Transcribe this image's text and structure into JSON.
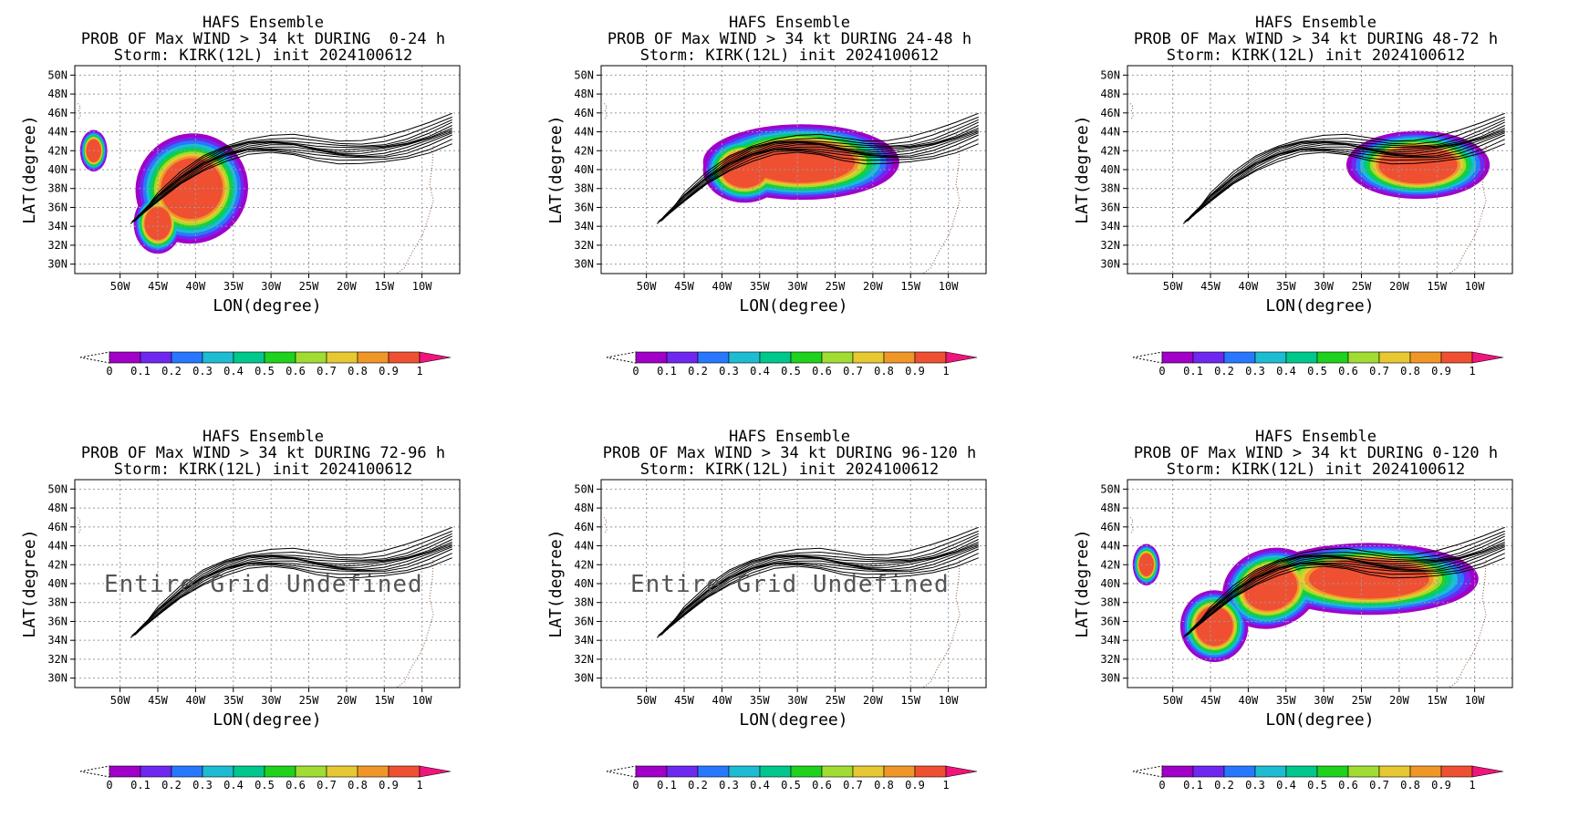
{
  "panels": [
    {
      "title": "HAFS Ensemble",
      "subtitle": "PROB OF Max WIND > 34 kt DURING  0-24 h",
      "storm": "Storm: KIRK(12L) init 2024100612",
      "undefined_text": ""
    },
    {
      "title": "HAFS Ensemble",
      "subtitle": "PROB OF Max WIND > 34 kt DURING 24-48 h",
      "storm": "Storm: KIRK(12L) init 2024100612",
      "undefined_text": ""
    },
    {
      "title": "HAFS Ensemble",
      "subtitle": "PROB OF Max WIND > 34 kt DURING 48-72 h",
      "storm": "Storm: KIRK(12L) init 2024100612",
      "undefined_text": ""
    },
    {
      "title": "HAFS Ensemble",
      "subtitle": "PROB OF Max WIND > 34 kt DURING 72-96 h",
      "storm": "Storm: KIRK(12L) init 2024100612",
      "undefined_text": "Entire Grid Undefined"
    },
    {
      "title": "HAFS Ensemble",
      "subtitle": "PROB OF Max WIND > 34 kt DURING 96-120 h",
      "storm": "Storm: KIRK(12L) init 2024100612",
      "undefined_text": "Entire Grid Undefined"
    },
    {
      "title": "HAFS Ensemble",
      "subtitle": "PROB OF Max WIND > 34 kt DURING 0-120 h",
      "storm": "Storm: KIRK(12L) init 2024100612",
      "undefined_text": ""
    }
  ],
  "chart_data": {
    "type": "heatmap",
    "variable": "PROB OF Max WIND > 34 kt",
    "xlabel": "LON(degree)",
    "ylabel": "LAT(degree)",
    "xlim": [
      -56,
      -5
    ],
    "ylim": [
      29,
      51
    ],
    "x_ticks": [
      -50,
      -45,
      -40,
      -35,
      -30,
      -25,
      -20,
      -15,
      -10
    ],
    "x_tick_labels": [
      "50W",
      "45W",
      "40W",
      "35W",
      "30W",
      "25W",
      "20W",
      "15W",
      "10W"
    ],
    "y_ticks": [
      30,
      32,
      34,
      36,
      38,
      40,
      42,
      44,
      46,
      48,
      50
    ],
    "y_tick_labels": [
      "30N",
      "32N",
      "34N",
      "36N",
      "38N",
      "40N",
      "42N",
      "44N",
      "46N",
      "48N",
      "50N"
    ],
    "grid": true,
    "colorbar": {
      "levels": [
        "0",
        "0.1",
        "0.2",
        "0.3",
        "0.4",
        "0.5",
        "0.6",
        "0.7",
        "0.8",
        "0.9",
        "1"
      ],
      "colors": [
        "#a000c8",
        "#6e28f0",
        "#2878ff",
        "#1ebcd2",
        "#00c88c",
        "#1ed21e",
        "#a0dc32",
        "#e6c832",
        "#f09628",
        "#f05032",
        "#f0147d"
      ]
    },
    "track_center": {
      "lon": [
        -48,
        -45,
        -42,
        -39,
        -36,
        -33,
        -30,
        -27,
        -24,
        -21,
        -18,
        -15,
        -12,
        -9,
        -6
      ],
      "lat": [
        34.7,
        37.0,
        39.0,
        40.6,
        41.7,
        42.4,
        42.6,
        42.5,
        42.1,
        41.8,
        41.8,
        42.0,
        42.5,
        43.3,
        44.3
      ]
    },
    "track_member_offsets": [
      -1.2,
      -0.9,
      -0.6,
      -0.4,
      -0.2,
      0,
      0.15,
      0.3,
      0.5,
      0.7,
      1.0,
      1.4
    ],
    "probability_regions": [
      {
        "period": "0-24 h",
        "blobs": [
          {
            "lon": -40.5,
            "lat": 38.0,
            "rlon": 7.5,
            "rlat": 5.8,
            "rot": -0.45
          },
          {
            "lon": -45.0,
            "lat": 34.3,
            "rlon": 3.2,
            "rlat": 3.2,
            "rot": 0
          },
          {
            "lon": -53.5,
            "lat": 42.0,
            "rlon": 1.8,
            "rlat": 2.2,
            "rot": 0
          }
        ]
      },
      {
        "period": "24-48 h",
        "blobs": [
          {
            "lon": -29.5,
            "lat": 40.8,
            "rlon": 13.0,
            "rlat": 4.0,
            "rot": 0
          },
          {
            "lon": -37.0,
            "lat": 40.0,
            "rlon": 5.5,
            "rlat": 3.5,
            "rot": 0
          }
        ]
      },
      {
        "period": "48-72 h",
        "blobs": [
          {
            "lon": -17.5,
            "lat": 40.5,
            "rlon": 9.5,
            "rlat": 3.6,
            "rot": 0
          }
        ]
      },
      {
        "period": "72-96 h",
        "blobs": []
      },
      {
        "period": "96-120 h",
        "blobs": []
      },
      {
        "period": "0-120 h",
        "blobs": [
          {
            "lon": -44.5,
            "lat": 35.5,
            "rlon": 4.5,
            "rlat": 3.8,
            "rot": 0
          },
          {
            "lon": -37.0,
            "lat": 39.5,
            "rlon": 6.5,
            "rlat": 4.2,
            "rot": -0.3
          },
          {
            "lon": -24.0,
            "lat": 40.5,
            "rlon": 14.5,
            "rlat": 3.8,
            "rot": 0
          },
          {
            "lon": -53.5,
            "lat": 42.0,
            "rlon": 1.8,
            "rlat": 2.2,
            "rot": 0
          }
        ]
      }
    ]
  }
}
